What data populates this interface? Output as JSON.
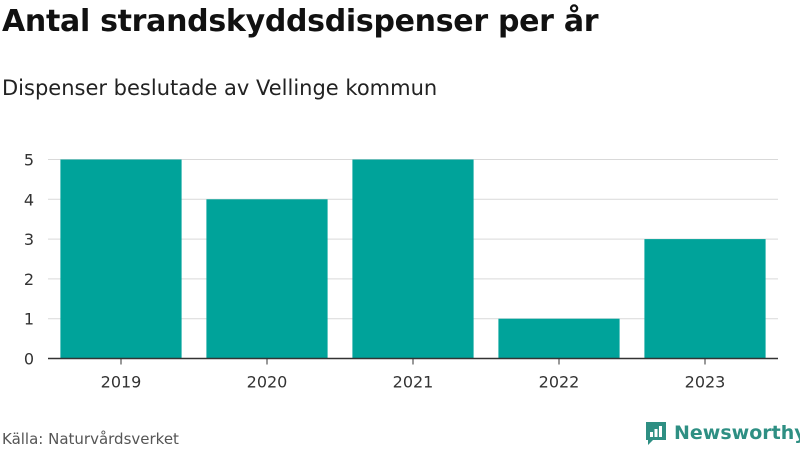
{
  "title": "Antal strandskyddsdispenser per år",
  "subtitle": "Dispenser beslutade av Vellinge kommun",
  "source": "Källa: Naturvårdsverket",
  "brand": {
    "name": "Newsworthy",
    "icon": "newsworthy-logo-icon"
  },
  "colors": {
    "bar": "#00a39a",
    "grid": "#d9d9d9",
    "axis": "#333333",
    "brand": "#2e8f83"
  },
  "chart_data": {
    "type": "bar",
    "categories": [
      "2019",
      "2020",
      "2021",
      "2022",
      "2023"
    ],
    "values": [
      5,
      4,
      5,
      1,
      3
    ],
    "ylim": [
      0,
      5
    ],
    "yticks": [
      "0",
      "1",
      "2",
      "3",
      "4",
      "5"
    ],
    "grid": true,
    "legend": "none"
  }
}
